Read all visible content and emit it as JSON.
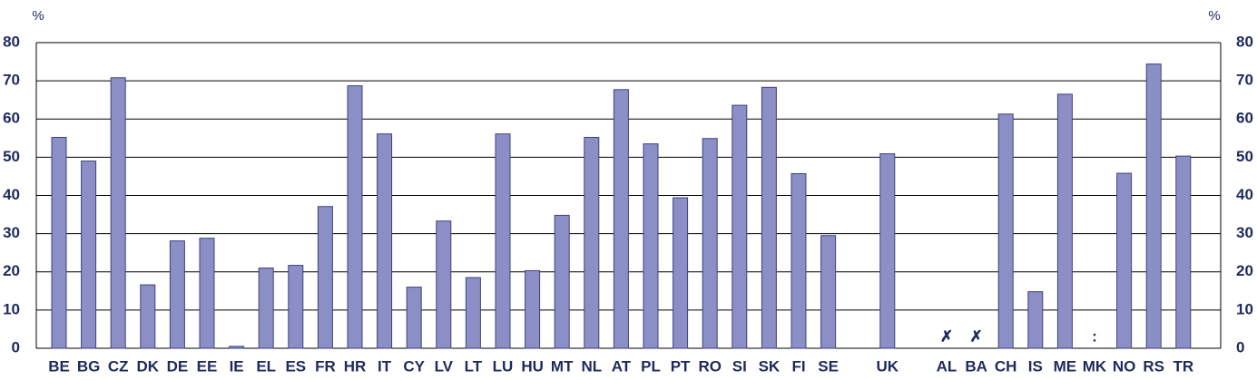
{
  "chart_data": {
    "type": "bar",
    "y_label": "%",
    "categories": [
      "BE",
      "BG",
      "CZ",
      "DK",
      "DE",
      "EE",
      "IE",
      "EL",
      "ES",
      "FR",
      "HR",
      "IT",
      "CY",
      "LV",
      "LT",
      "LU",
      "HU",
      "MT",
      "NL",
      "AT",
      "PL",
      "PT",
      "RO",
      "SI",
      "SK",
      "FI",
      "SE",
      null,
      "UK",
      null,
      "AL",
      "BA",
      "CH",
      "IS",
      "ME",
      "MK",
      "NO",
      "RS",
      "TR"
    ],
    "values": [
      55.2,
      49,
      70.8,
      16.6,
      28.1,
      28.8,
      0.5,
      21,
      21.7,
      37.1,
      68.7,
      56.1,
      16,
      33.3,
      18.5,
      56.1,
      20.3,
      34.8,
      55.2,
      67.7,
      53.5,
      39.4,
      54.9,
      63.6,
      68.3,
      45.7,
      29.5,
      null,
      50.9,
      null,
      null,
      null,
      61.3,
      14.8,
      66.5,
      null,
      45.8,
      74.4,
      50.3
    ],
    "value_labels": [
      null,
      null,
      null,
      null,
      null,
      null,
      null,
      null,
      null,
      null,
      null,
      null,
      null,
      null,
      null,
      null,
      null,
      null,
      null,
      null,
      null,
      null,
      null,
      null,
      null,
      null,
      null,
      null,
      null,
      null,
      "✗",
      "✗",
      null,
      null,
      null,
      ":",
      null,
      null,
      null
    ],
    "color": "#8b8fc6",
    "ylim": [
      0,
      80
    ],
    "yticks": [
      0,
      10,
      20,
      30,
      40,
      50,
      60,
      70,
      80
    ],
    "grid": true
  }
}
